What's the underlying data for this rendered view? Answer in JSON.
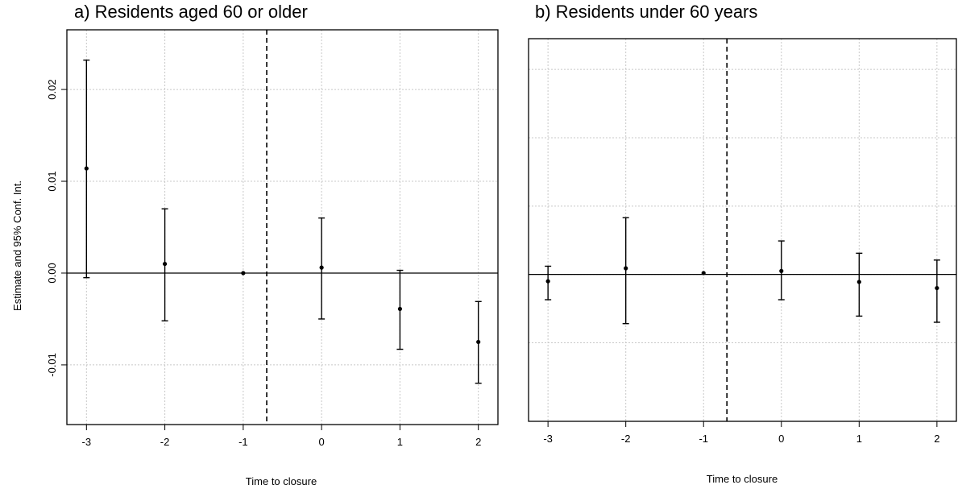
{
  "chart_data": [
    {
      "type": "scatter",
      "title": "a) Residents aged 60 or older",
      "xlabel": "Time to closure",
      "ylabel": "Estimate and 95% Conf. Int.",
      "x": [
        -3,
        -2,
        -1,
        0,
        1,
        2
      ],
      "estimate": [
        0.0114,
        0.001,
        0.0,
        0.0006,
        -0.0039,
        -0.0075
      ],
      "ci_lower": [
        -0.0005,
        -0.0052,
        0.0,
        -0.005,
        -0.0083,
        -0.012
      ],
      "ci_upper": [
        0.0232,
        0.007,
        0.0,
        0.006,
        0.0003,
        -0.0031
      ],
      "xticks": [
        "-3",
        "-2",
        "-1",
        "0",
        "1",
        "2"
      ],
      "yticks": [
        "-0.01",
        "0.00",
        "0.01",
        "0.02"
      ],
      "ylim": [
        -0.0165,
        0.0265
      ],
      "xlim": [
        -3.25,
        2.25
      ],
      "reference_line_y": 0,
      "treatment_line_x": -0.7,
      "grid": true
    },
    {
      "type": "scatter",
      "title": "b) Residents under 60 years",
      "xlabel": "Time to closure",
      "ylabel": "",
      "x": [
        -3,
        -2,
        -1,
        0,
        1,
        2
      ],
      "estimate": [
        -0.001,
        0.0009,
        0.0002,
        0.0005,
        -0.0011,
        -0.002
      ],
      "ci_lower": [
        -0.0037,
        -0.0072,
        0.0002,
        -0.0037,
        -0.0061,
        -0.007
      ],
      "ci_upper": [
        0.0012,
        0.0083,
        0.0002,
        0.0049,
        0.0031,
        0.0021
      ],
      "xticks": [
        "-3",
        "-2",
        "-1",
        "0",
        "1",
        "2"
      ],
      "yticks": [],
      "ylim": [
        -0.0215,
        0.0345
      ],
      "xlim": [
        -3.25,
        2.25
      ],
      "reference_line_y": 0,
      "treatment_line_x": -0.7,
      "grid": true
    }
  ]
}
